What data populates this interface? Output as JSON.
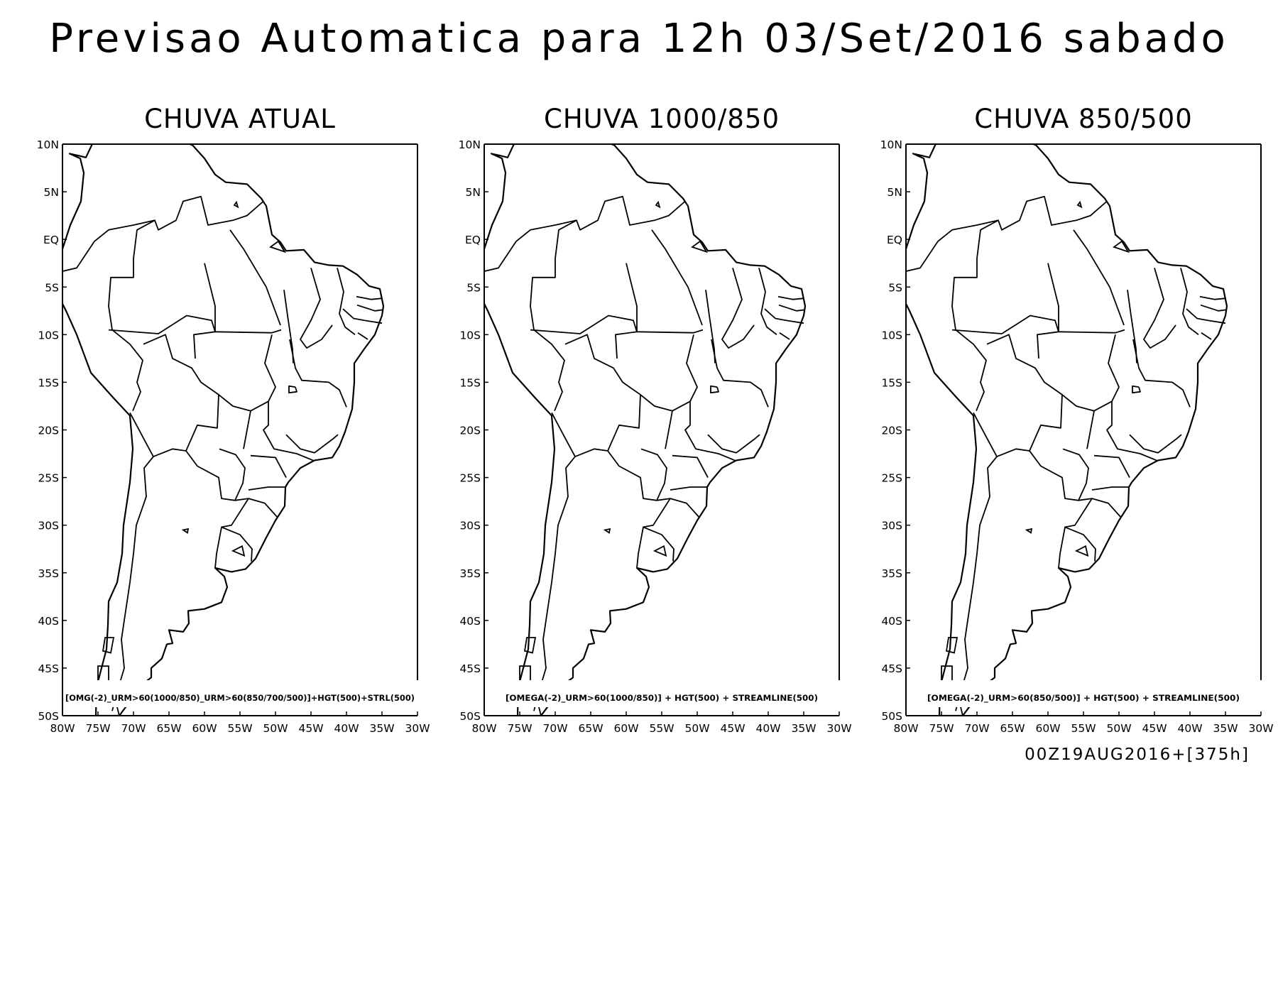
{
  "title": "Previsao Automatica para 12h 03/Set/2016 sabado",
  "run_info": "00Z19AUG2016+[375h]",
  "panels": [
    {
      "title": "CHUVA ATUAL",
      "caption": "[OMG(-2)_URM>60(1000/850)_URM>60(850/700/500)]+HGT(500)+STRL(500)"
    },
    {
      "title": "CHUVA 1000/850",
      "caption": "[OMEGA(-2)_URM>60(1000/850)] + HGT(500) + STREAMLINE(500)"
    },
    {
      "title": "CHUVA 850/500",
      "caption": "[OMEGA(-2)_URM>60(850/500)] + HGT(500) + STREAMLINE(500)"
    }
  ],
  "map": {
    "extent": {
      "lon": [
        -80,
        -30
      ],
      "lat": [
        -50,
        10
      ]
    },
    "lat_labels": [
      "10N",
      "5N",
      "EQ",
      "5S",
      "10S",
      "15S",
      "20S",
      "25S",
      "30S",
      "35S",
      "40S",
      "45S",
      "50S"
    ],
    "lon_labels": [
      "80W",
      "75W",
      "70W",
      "65W",
      "60W",
      "55W",
      "50W",
      "45W",
      "40W",
      "35W",
      "30W"
    ],
    "line_color": "#000000"
  }
}
